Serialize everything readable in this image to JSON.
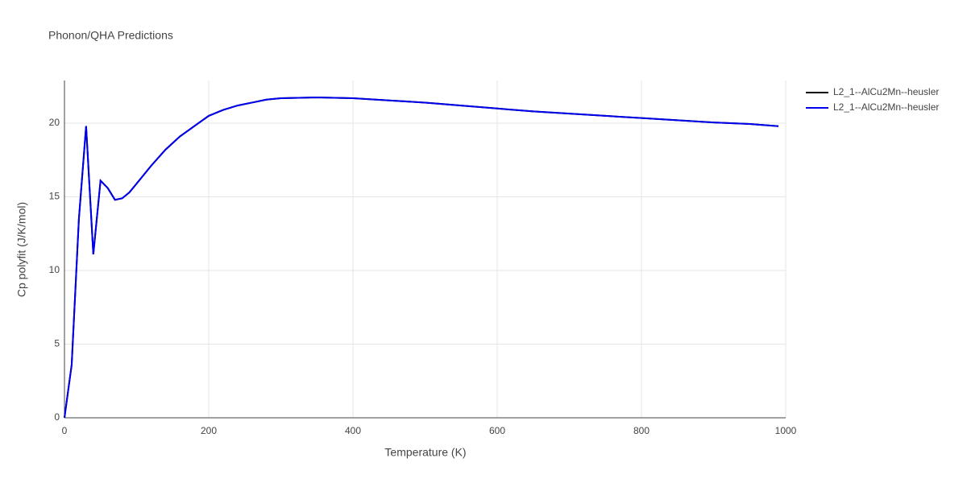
{
  "chart_data": {
    "type": "line",
    "title": "Phonon/QHA Predictions",
    "x_label": "Temperature (K)",
    "y_label": "Cp polyfit (J/K/mol)",
    "x": [
      0,
      10,
      20,
      30,
      40,
      50,
      60,
      70,
      80,
      90,
      100,
      120,
      140,
      160,
      180,
      200,
      220,
      240,
      260,
      280,
      300,
      350,
      400,
      450,
      500,
      550,
      600,
      650,
      700,
      750,
      800,
      850,
      900,
      950,
      990
    ],
    "series": [
      {
        "name": "L2_1--AlCu2Mn--heusler",
        "color": "#000000",
        "values": [
          0,
          3.6,
          13.5,
          19.8,
          11.1,
          16.1,
          15.6,
          14.8,
          14.9,
          15.3,
          15.9,
          17.1,
          18.2,
          19.1,
          19.8,
          20.5,
          20.9,
          21.2,
          21.4,
          21.6,
          21.7,
          21.75,
          21.7,
          21.55,
          21.4,
          21.2,
          21.0,
          20.8,
          20.65,
          20.5,
          20.35,
          20.2,
          20.05,
          19.95,
          19.8
        ]
      },
      {
        "name": "L2_1--AlCu2Mn--heusler",
        "color": "#0000ee",
        "values": [
          0,
          3.6,
          13.5,
          19.8,
          11.1,
          16.1,
          15.6,
          14.8,
          14.9,
          15.3,
          15.9,
          17.1,
          18.2,
          19.1,
          19.8,
          20.5,
          20.9,
          21.2,
          21.4,
          21.6,
          21.7,
          21.75,
          21.7,
          21.55,
          21.4,
          21.2,
          21.0,
          20.8,
          20.65,
          20.5,
          20.35,
          20.2,
          20.05,
          19.95,
          19.8
        ]
      }
    ],
    "xlim": [
      0,
      1000
    ],
    "xticks": [
      0,
      200,
      400,
      600,
      800,
      1000
    ],
    "ylim": [
      0,
      22.9
    ],
    "yticks": [
      0,
      5,
      10,
      15,
      20
    ],
    "grid": true,
    "legend": "top-right"
  }
}
